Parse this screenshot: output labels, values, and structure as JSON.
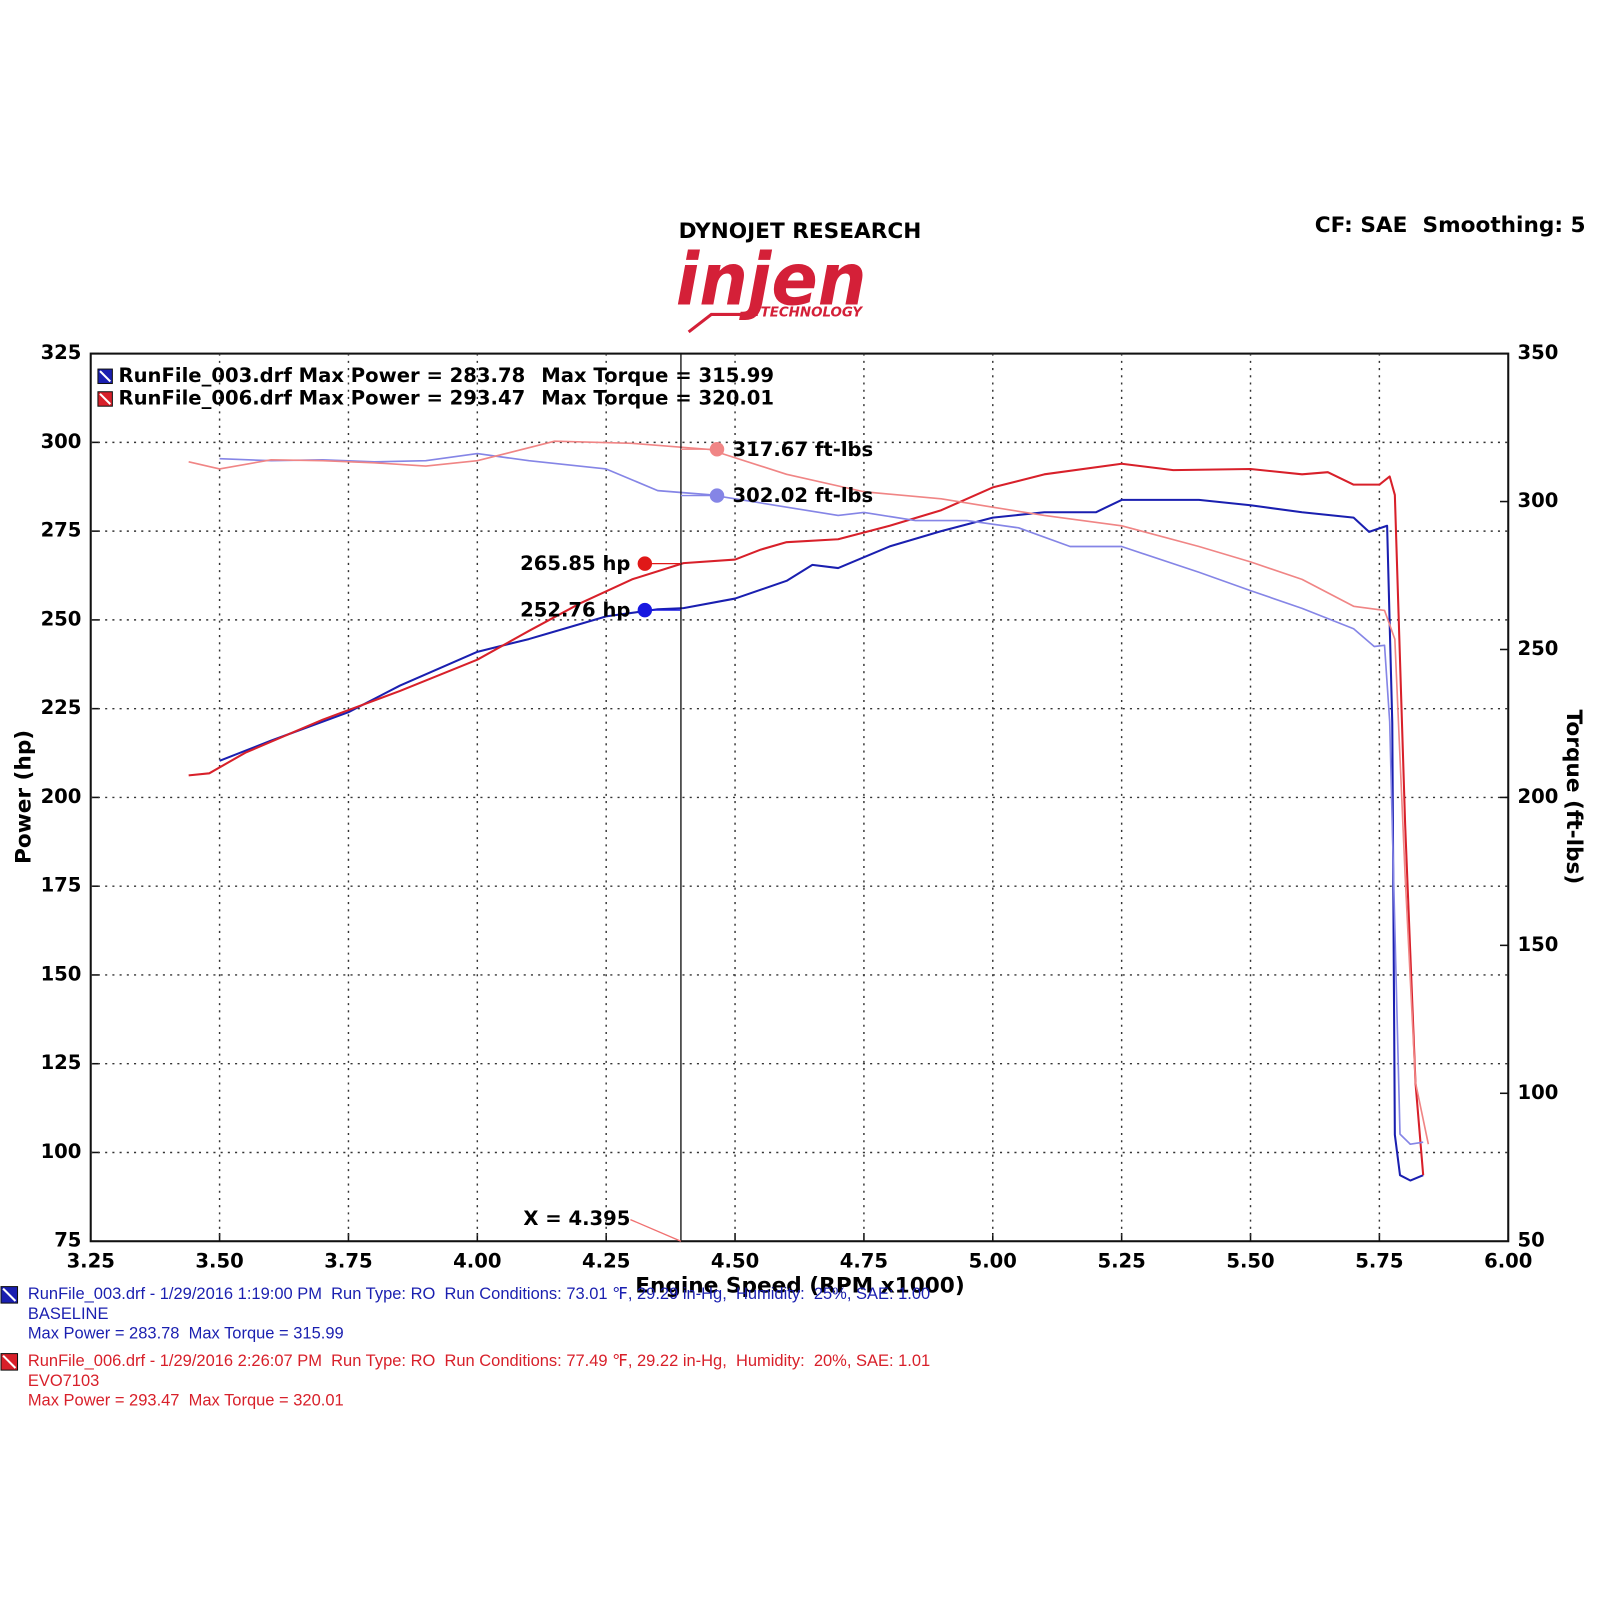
{
  "header": {
    "title": "DYNOJET RESEARCH",
    "logo": "injen",
    "logo_sub": "TECHNOLOGY",
    "settings": "CF: SAE  Smoothing: 5"
  },
  "chart_data": {
    "type": "line",
    "xlabel": "Engine Speed (RPM x1000)",
    "ylabel": "Power (hp)",
    "y2label": "Torque (ft-lbs)",
    "xlim": [
      3.25,
      6.0
    ],
    "ylim": [
      75,
      325
    ],
    "y2lim": [
      50,
      350
    ],
    "grid": true,
    "xticks": [
      3.25,
      {
        "value": 3.5,
        "label": "3.50"
      },
      3.75,
      {
        "value": 4.0,
        "label": "4.00"
      },
      4.25,
      {
        "value": 4.5,
        "label": "4.50"
      },
      4.75,
      {
        "value": 5.0,
        "label": "5.00"
      },
      5.25,
      {
        "value": 5.5,
        "label": "5.50"
      },
      5.75,
      {
        "value": 6.0,
        "label": "6.00"
      }
    ],
    "yticks": [
      75,
      100,
      125,
      150,
      175,
      200,
      225,
      250,
      275,
      300,
      325
    ],
    "y2ticks": [
      50,
      100,
      150,
      200,
      250,
      300,
      350
    ],
    "legend": [
      {
        "text": "RunFile_003.drf Max Power = 283.78",
        "torque": "Max Torque = 315.99",
        "color": "#1a1fb0"
      },
      {
        "text": "RunFile_006.drf Max Power = 293.47",
        "torque": "Max Torque = 320.01",
        "color": "#d8202a"
      }
    ],
    "series": [
      {
        "color": "#1a1fb0",
        "axis": "y",
        "x": [
          3.5,
          3.6,
          3.75,
          3.85,
          4.0,
          4.1,
          4.25,
          4.35,
          4.4,
          4.5,
          4.6,
          4.65,
          4.7,
          4.8,
          4.9,
          5.0,
          5.1,
          5.2,
          5.25,
          5.4,
          5.5,
          5.6,
          5.7,
          5.73,
          5.765,
          5.775,
          5.78,
          5.79,
          5.81,
          5.835
        ],
        "values": [
          210.3,
          216,
          224,
          231.5,
          241,
          244.6,
          251,
          253,
          253.3,
          256,
          261,
          265.5,
          264.6,
          270.7,
          275,
          278.8,
          280.3,
          280.3,
          283.8,
          283.8,
          282.3,
          280.3,
          278.8,
          274.8,
          276.5,
          221,
          105,
          93.6,
          92.1,
          93.6
        ]
      },
      {
        "color": "#d8202a",
        "axis": "y",
        "x": [
          3.44,
          3.48,
          3.55,
          3.7,
          3.85,
          4.0,
          4.1,
          4.2,
          4.3,
          4.4,
          4.5,
          4.55,
          4.6,
          4.7,
          4.8,
          4.9,
          5.0,
          5.1,
          5.25,
          5.35,
          5.5,
          5.6,
          5.65,
          5.7,
          5.75,
          5.77,
          5.78,
          5.8,
          5.82,
          5.835
        ],
        "values": [
          206.2,
          206.8,
          212.6,
          221.9,
          230,
          238.8,
          246.9,
          254.7,
          261.4,
          266,
          267,
          269.8,
          271.9,
          272.7,
          276.5,
          280.9,
          287.3,
          291,
          294,
          292.2,
          292.5,
          291,
          291.6,
          288.1,
          288.1,
          290.4,
          285.2,
          192.3,
          119.7,
          93.6
        ]
      },
      {
        "color": "#8585e6",
        "axis": "y2",
        "x": [
          3.5,
          3.6,
          3.7,
          3.8,
          3.9,
          4.0,
          4.1,
          4.25,
          4.35,
          4.45,
          4.55,
          4.7,
          4.75,
          4.85,
          4.95,
          5.05,
          5.15,
          5.25,
          5.4,
          5.5,
          5.6,
          5.7,
          5.74,
          5.76,
          5.77,
          5.78,
          5.79,
          5.81,
          5.835
        ],
        "values": [
          314.5,
          313.8,
          314.1,
          313.4,
          313.8,
          316.2,
          313.8,
          311,
          303.7,
          302.3,
          299.5,
          295.3,
          296.3,
          293.6,
          293.6,
          291.1,
          284.8,
          284.8,
          276.1,
          269.9,
          263.9,
          257,
          251,
          251.4,
          225.6,
          155.9,
          86.2,
          82.8,
          83.5
        ]
      },
      {
        "color": "#f08585",
        "axis": "y2",
        "x": [
          3.44,
          3.5,
          3.6,
          3.7,
          3.8,
          3.9,
          4.0,
          4.15,
          4.3,
          4.45,
          4.6,
          4.75,
          4.9,
          5.0,
          5.1,
          5.25,
          5.4,
          5.5,
          5.6,
          5.7,
          5.76,
          5.78,
          5.8,
          5.82,
          5.845
        ],
        "values": [
          313.4,
          311,
          314.1,
          313.8,
          313.1,
          312,
          313.8,
          320.4,
          319.7,
          317.6,
          309.2,
          303.3,
          300.9,
          298.1,
          295.3,
          291.8,
          284.8,
          279.6,
          273.7,
          264.6,
          263.2,
          253.5,
          173.3,
          103.7,
          82.8
        ]
      }
    ],
    "annotations": [
      {
        "value": 317.67,
        "label": "317.67 ft-lbs",
        "axis": "y2",
        "color": "#f08585"
      },
      {
        "value": 302.02,
        "label": "302.02 ft-lbs",
        "axis": "y2",
        "color": "#8585e6"
      },
      {
        "value": 265.85,
        "label": "265.85 hp",
        "axis": "y",
        "color": "#e01818"
      },
      {
        "value": 252.76,
        "label": "252.76 hp",
        "axis": "y",
        "color": "#1818e0"
      }
    ],
    "cursor": {
      "value": 4.395,
      "label": "X = 4.395"
    }
  },
  "run_info": [
    {
      "color": "#1a1fb0",
      "lines": [
        "RunFile_003.drf - 1/29/2016 1:19:00 PM  Run Type: RO  Run Conditions: 73.01 ℉, 29.29 in-Hg,  Humidity:  25%, SAE: 1.00",
        "BASELINE",
        "Max Power = 283.78  Max Torque = 315.99"
      ]
    },
    {
      "color": "#d8202a",
      "lines": [
        "RunFile_006.drf - 1/29/2016 2:26:07 PM  Run Type: RO  Run Conditions: 77.49 ℉, 29.22 in-Hg,  Humidity:  20%, SAE: 1.01",
        "EVO7103",
        "Max Power = 293.47  Max Torque = 320.01"
      ]
    }
  ]
}
